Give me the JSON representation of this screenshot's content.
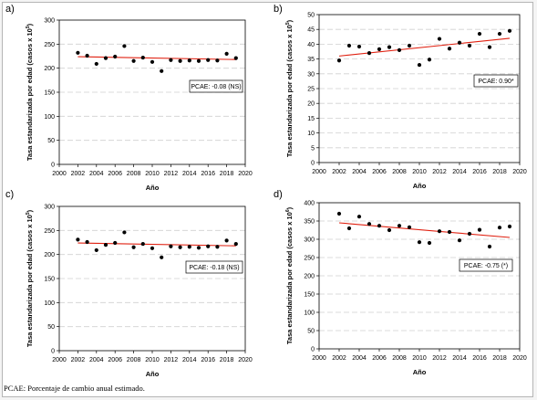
{
  "footnote": "PCAE: Porcentaje de cambio anual estimado.",
  "colors": {
    "trend": "#e02010",
    "gridline": "#d0d0d0",
    "point": "#000000"
  },
  "chart_data": [
    {
      "panel": "a)",
      "type": "scatter",
      "xlabel": "Año",
      "ylabel": "Tasa estandarizada por edad (casos x 10",
      "ylabel_sup": "5",
      "ylabel_end": ")",
      "xlim": [
        2000,
        2020
      ],
      "ylim": [
        0,
        300
      ],
      "xticks": [
        2000,
        2002,
        2004,
        2006,
        2008,
        2010,
        2012,
        2014,
        2016,
        2018,
        2020
      ],
      "yticks": [
        0,
        50,
        100,
        150,
        200,
        250,
        300
      ],
      "grid": "horizontal dashed",
      "x": [
        2002,
        2003,
        2004,
        2005,
        2006,
        2007,
        2008,
        2009,
        2010,
        2011,
        2012,
        2013,
        2014,
        2015,
        2016,
        2017,
        2018,
        2019
      ],
      "y": [
        232,
        226,
        209,
        221,
        224,
        246,
        215,
        222,
        213,
        194,
        217,
        215,
        216,
        215,
        217,
        216,
        230,
        221
      ],
      "trend": [
        [
          2002,
          224
        ],
        [
          2019,
          218
        ]
      ],
      "annotation": "PCAE:  -0.08 (NS)"
    },
    {
      "panel": "b)",
      "type": "scatter",
      "xlabel": "Año",
      "ylabel": "Tasa estandarizada por edad (casos x 10",
      "ylabel_sup": "5",
      "ylabel_end": ")",
      "xlim": [
        2000,
        2020
      ],
      "ylim": [
        0,
        50
      ],
      "xticks": [
        2000,
        2002,
        2004,
        2006,
        2008,
        2010,
        2012,
        2014,
        2016,
        2018,
        2020
      ],
      "yticks": [
        0,
        5,
        10,
        15,
        20,
        25,
        30,
        35,
        40,
        45,
        50
      ],
      "grid": "horizontal dashed",
      "x": [
        2002,
        2003,
        2004,
        2005,
        2006,
        2007,
        2008,
        2009,
        2010,
        2011,
        2012,
        2013,
        2014,
        2015,
        2016,
        2017,
        2018,
        2019
      ],
      "y": [
        34.5,
        39.5,
        39.2,
        37.0,
        38.3,
        39.0,
        38.0,
        39.5,
        33.0,
        34.8,
        41.8,
        38.5,
        40.5,
        39.5,
        43.5,
        39.0,
        43.5,
        44.5
      ],
      "trend": [
        [
          2002,
          36
        ],
        [
          2019,
          42
        ]
      ],
      "annotation": "PCAE:  0.90*"
    },
    {
      "panel": "c)",
      "type": "scatter",
      "xlabel": "Año",
      "ylabel": "Tasa estandarizada por edad (casos x 10",
      "ylabel_sup": "5",
      "ylabel_end": ")",
      "xlim": [
        2000,
        2020
      ],
      "ylim": [
        0,
        300
      ],
      "xticks": [
        2000,
        2002,
        2004,
        2006,
        2008,
        2010,
        2012,
        2014,
        2016,
        2018,
        2020
      ],
      "yticks": [
        0,
        50,
        100,
        150,
        200,
        250,
        300
      ],
      "grid": "horizontal dashed",
      "x": [
        2002,
        2003,
        2004,
        2005,
        2006,
        2007,
        2008,
        2009,
        2010,
        2011,
        2012,
        2013,
        2014,
        2015,
        2016,
        2017,
        2018,
        2019
      ],
      "y": [
        231,
        226,
        209,
        220,
        224,
        246,
        215,
        222,
        213,
        194,
        217,
        215,
        216,
        214,
        217,
        216,
        229,
        222
      ],
      "trend": [
        [
          2002,
          224
        ],
        [
          2019,
          218
        ]
      ],
      "annotation": "PCAE:  -0.18 (NS)"
    },
    {
      "panel": "d)",
      "type": "scatter",
      "xlabel": "Año",
      "ylabel": "Tasa estandarizada por edad (casos x 10",
      "ylabel_sup": "6",
      "ylabel_end": ")",
      "xlim": [
        2000,
        2020
      ],
      "ylim": [
        0,
        400
      ],
      "xticks": [
        2000,
        2002,
        2004,
        2006,
        2008,
        2010,
        2012,
        2014,
        2016,
        2018,
        2020
      ],
      "yticks": [
        0,
        50,
        100,
        150,
        200,
        250,
        300,
        350,
        400
      ],
      "grid": "horizontal dashed",
      "x": [
        2002,
        2003,
        2004,
        2005,
        2006,
        2007,
        2008,
        2009,
        2010,
        2011,
        2012,
        2013,
        2014,
        2015,
        2016,
        2017,
        2018,
        2019
      ],
      "y": [
        370,
        330,
        362,
        342,
        337,
        325,
        337,
        333,
        292,
        290,
        322,
        320,
        297,
        315,
        326,
        280,
        332,
        335
      ],
      "trend": [
        [
          2002,
          345
        ],
        [
          2019,
          305
        ]
      ],
      "annotation": "PCAE:  -0.75 (*)"
    }
  ]
}
